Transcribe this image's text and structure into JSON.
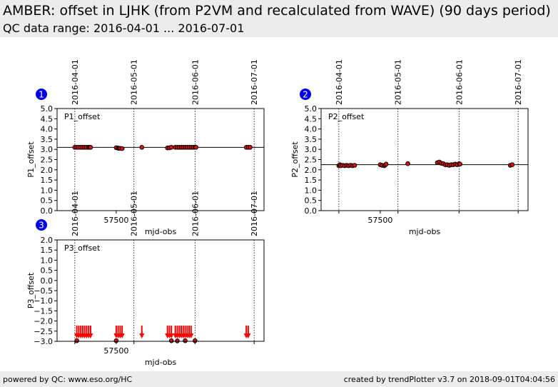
{
  "header": {
    "title": "AMBER: offset in LJHK (from P2VM and recalculated from WAVE) (90 days period)",
    "subtitle": "QC data range: 2016-04-01 ... 2016-07-01"
  },
  "footer": {
    "left": "powered by QC: www.eso.org/HC",
    "right": "created by trendPlotter v3.7 on 2018-09-01T04:04:56"
  },
  "colors": {
    "marker_fill": "#dd1111",
    "marker_edge": "#000000",
    "badge": "#0000ee",
    "arrow": "#ff0000"
  },
  "chart_data": [
    {
      "id": "1",
      "type": "scatter",
      "label": "P1_offset",
      "xlabel": "mjd-obs",
      "ylabel": "P1_offset",
      "xlim": [
        57470,
        57575
      ],
      "ylim": [
        0.0,
        5.0
      ],
      "xticks": [
        57500
      ],
      "yticks": [
        "0.0",
        "0.5",
        "1.0",
        "1.5",
        "2.0",
        "2.5",
        "3.0",
        "3.5",
        "4.0",
        "4.5",
        "5.0"
      ],
      "date_markers": [
        {
          "label": "2016-04-01",
          "mjd": 57479
        },
        {
          "label": "2016-05-01",
          "mjd": 57509
        },
        {
          "label": "2016-06-01",
          "mjd": 57540
        },
        {
          "label": "2016-07-01",
          "mjd": 57570
        }
      ],
      "reference_line": 3.1,
      "points": [
        [
          57479,
          3.1
        ],
        [
          57480,
          3.1
        ],
        [
          57481,
          3.1
        ],
        [
          57482,
          3.1
        ],
        [
          57483,
          3.1
        ],
        [
          57484,
          3.1
        ],
        [
          57485,
          3.1
        ],
        [
          57486,
          3.1
        ],
        [
          57486.5,
          3.1
        ],
        [
          57487,
          3.1
        ],
        [
          57500,
          3.08
        ],
        [
          57501,
          3.06
        ],
        [
          57501.5,
          3.05
        ],
        [
          57502,
          3.05
        ],
        [
          57503,
          3.04
        ],
        [
          57513,
          3.1
        ],
        [
          57526,
          3.07
        ],
        [
          57527,
          3.08
        ],
        [
          57528,
          3.1
        ],
        [
          57530,
          3.1
        ],
        [
          57531,
          3.1
        ],
        [
          57532,
          3.1
        ],
        [
          57533,
          3.1
        ],
        [
          57534,
          3.1
        ],
        [
          57535,
          3.1
        ],
        [
          57536,
          3.1
        ],
        [
          57537,
          3.1
        ],
        [
          57538,
          3.1
        ],
        [
          57539,
          3.1
        ],
        [
          57540,
          3.1
        ],
        [
          57540.5,
          3.1
        ],
        [
          57566,
          3.1
        ],
        [
          57567,
          3.1
        ],
        [
          57568,
          3.1
        ]
      ]
    },
    {
      "id": "2",
      "type": "scatter",
      "label": "P2_offset",
      "xlabel": "mjd-obs",
      "ylabel": "P2_offset",
      "xlim": [
        57470,
        57575
      ],
      "ylim": [
        0.0,
        5.0
      ],
      "xticks": [
        57500
      ],
      "yticks": [
        "0.0",
        "0.5",
        "1.0",
        "1.5",
        "2.0",
        "2.5",
        "3.0",
        "3.5",
        "4.0",
        "4.5",
        "5.0"
      ],
      "date_markers": [
        {
          "label": "2016-04-01",
          "mjd": 57479
        },
        {
          "label": "2016-05-01",
          "mjd": 57509
        },
        {
          "label": "2016-06-01",
          "mjd": 57540
        },
        {
          "label": "2016-07-01",
          "mjd": 57570
        }
      ],
      "reference_line": 2.25,
      "points": [
        [
          57479,
          2.2
        ],
        [
          57479.5,
          2.25
        ],
        [
          57480,
          2.2
        ],
        [
          57481,
          2.22
        ],
        [
          57482,
          2.2
        ],
        [
          57483,
          2.22
        ],
        [
          57484,
          2.2
        ],
        [
          57485,
          2.22
        ],
        [
          57486,
          2.2
        ],
        [
          57487,
          2.22
        ],
        [
          57500,
          2.25
        ],
        [
          57501,
          2.22
        ],
        [
          57502,
          2.2
        ],
        [
          57502.5,
          2.23
        ],
        [
          57503,
          2.28
        ],
        [
          57514,
          2.3
        ],
        [
          57529,
          2.35
        ],
        [
          57530,
          2.38
        ],
        [
          57531,
          2.32
        ],
        [
          57532,
          2.3
        ],
        [
          57533,
          2.25
        ],
        [
          57534,
          2.25
        ],
        [
          57535,
          2.22
        ],
        [
          57536,
          2.25
        ],
        [
          57537,
          2.25
        ],
        [
          57538,
          2.28
        ],
        [
          57539,
          2.25
        ],
        [
          57540,
          2.3
        ],
        [
          57540.5,
          2.28
        ],
        [
          57566,
          2.22
        ],
        [
          57567,
          2.25
        ]
      ]
    },
    {
      "id": "3",
      "type": "scatter",
      "label": "P3_offset",
      "xlabel": "mjd-obs",
      "ylabel": "P3_offset",
      "xlim": [
        57470,
        57575
      ],
      "ylim": [
        -3.0,
        2.0
      ],
      "xticks": [
        57500
      ],
      "yticks": [
        "−3.0",
        "−2.5",
        "−2.0",
        "−1.5",
        "−1.0",
        "−0.5",
        "0.0",
        "0.5",
        "1.0",
        "1.5",
        "2.0"
      ],
      "date_markers": [
        {
          "label": "2016-04-01",
          "mjd": 57479
        },
        {
          "label": "2016-05-01",
          "mjd": 57509
        },
        {
          "label": "2016-06-01",
          "mjd": 57540
        },
        {
          "label": "2016-07-01",
          "mjd": 57570
        }
      ],
      "out_of_range_arrows": [
        57480,
        57481,
        57482,
        57483,
        57484,
        57485,
        57486,
        57487,
        57500,
        57501,
        57502,
        57503,
        57513,
        57526,
        57527,
        57528,
        57530,
        57531,
        57532,
        57533,
        57534,
        57535,
        57536,
        57537,
        57538,
        57566,
        57567
      ],
      "points": [
        [
          57480,
          -2.97
        ],
        [
          57500,
          -2.97
        ],
        [
          57528,
          -2.97
        ],
        [
          57531,
          -2.98
        ],
        [
          57535,
          -2.97
        ],
        [
          57540,
          -2.97
        ]
      ]
    }
  ]
}
